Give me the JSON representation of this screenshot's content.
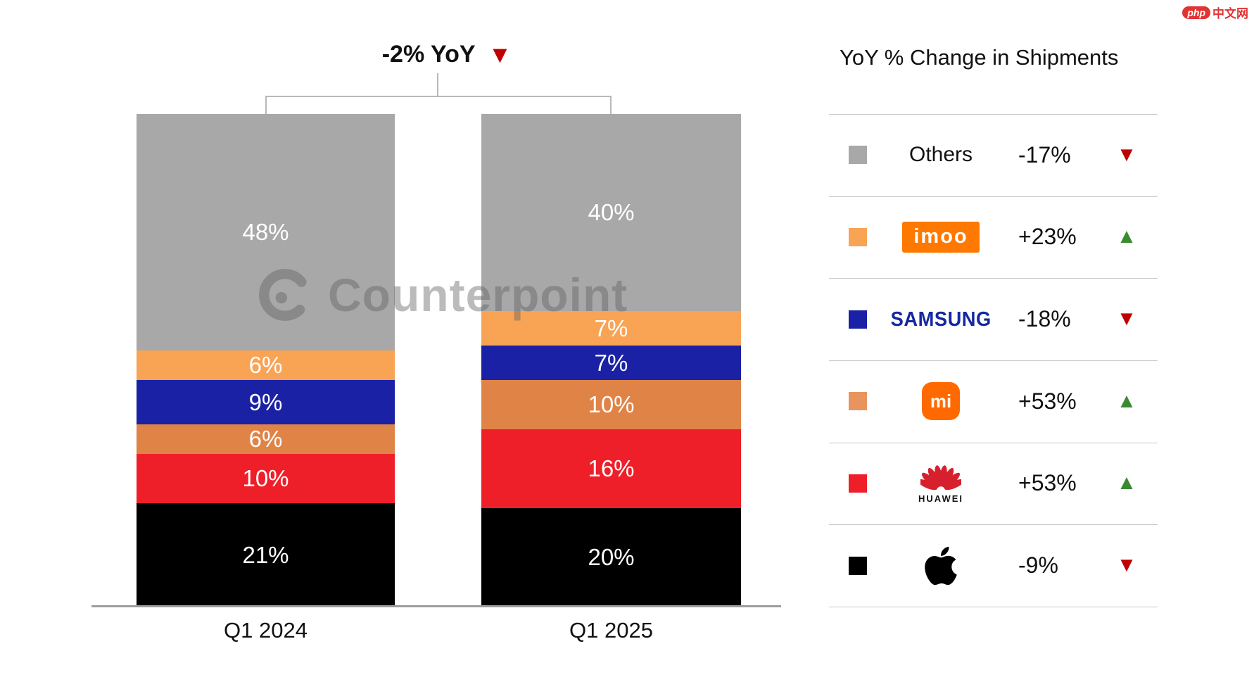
{
  "branding": {
    "logo_badge": "php",
    "logo_text": "中文网"
  },
  "watermark": {
    "text": "Counterpoint"
  },
  "icons": {
    "up": "▲",
    "down": "▼"
  },
  "chart_data": {
    "type": "bar",
    "stacked": true,
    "title": "-2% YoY",
    "title_direction": "down",
    "categories": [
      "Q1 2024",
      "Q1 2025"
    ],
    "value_suffix": "%",
    "ylim": [
      0,
      100
    ],
    "grid": false,
    "legend_position": "right",
    "series": [
      {
        "name": "Others",
        "color": "#a8a8a8",
        "values": [
          48,
          40
        ]
      },
      {
        "name": "imoo",
        "color": "#f9a355",
        "values": [
          6,
          7
        ]
      },
      {
        "name": "Samsung",
        "color": "#1b21a5",
        "values": [
          9,
          7
        ]
      },
      {
        "name": "Xiaomi",
        "color": "#e08347",
        "values": [
          6,
          10
        ]
      },
      {
        "name": "Huawei",
        "color": "#ee1f28",
        "values": [
          10,
          16
        ]
      },
      {
        "name": "Apple",
        "color": "#000000",
        "values": [
          21,
          20
        ]
      }
    ],
    "legend": {
      "title": "YoY % Change in Shipments",
      "up_color": "#3a8b2f",
      "down_color": "#c00000",
      "rows": [
        {
          "brand": "others",
          "logo_text": "Others",
          "swatch": "#a8a8a8",
          "change": "-17%",
          "direction": "down"
        },
        {
          "brand": "imoo",
          "logo_text": "imoo",
          "swatch": "#f9a355",
          "change": "+23%",
          "direction": "up"
        },
        {
          "brand": "samsung",
          "logo_text": "SAMSUNG",
          "swatch": "#1b21a5",
          "change": "-18%",
          "direction": "down"
        },
        {
          "brand": "xiaomi",
          "logo_text": "mi",
          "swatch": "#e8945e",
          "change": "+53%",
          "direction": "up"
        },
        {
          "brand": "huawei",
          "logo_text": "HUAWEI",
          "swatch": "#ee1f28",
          "change": "+53%",
          "direction": "up"
        },
        {
          "brand": "apple",
          "logo_text": "",
          "swatch": "#000000",
          "change": "-9%",
          "direction": "down"
        }
      ]
    }
  }
}
